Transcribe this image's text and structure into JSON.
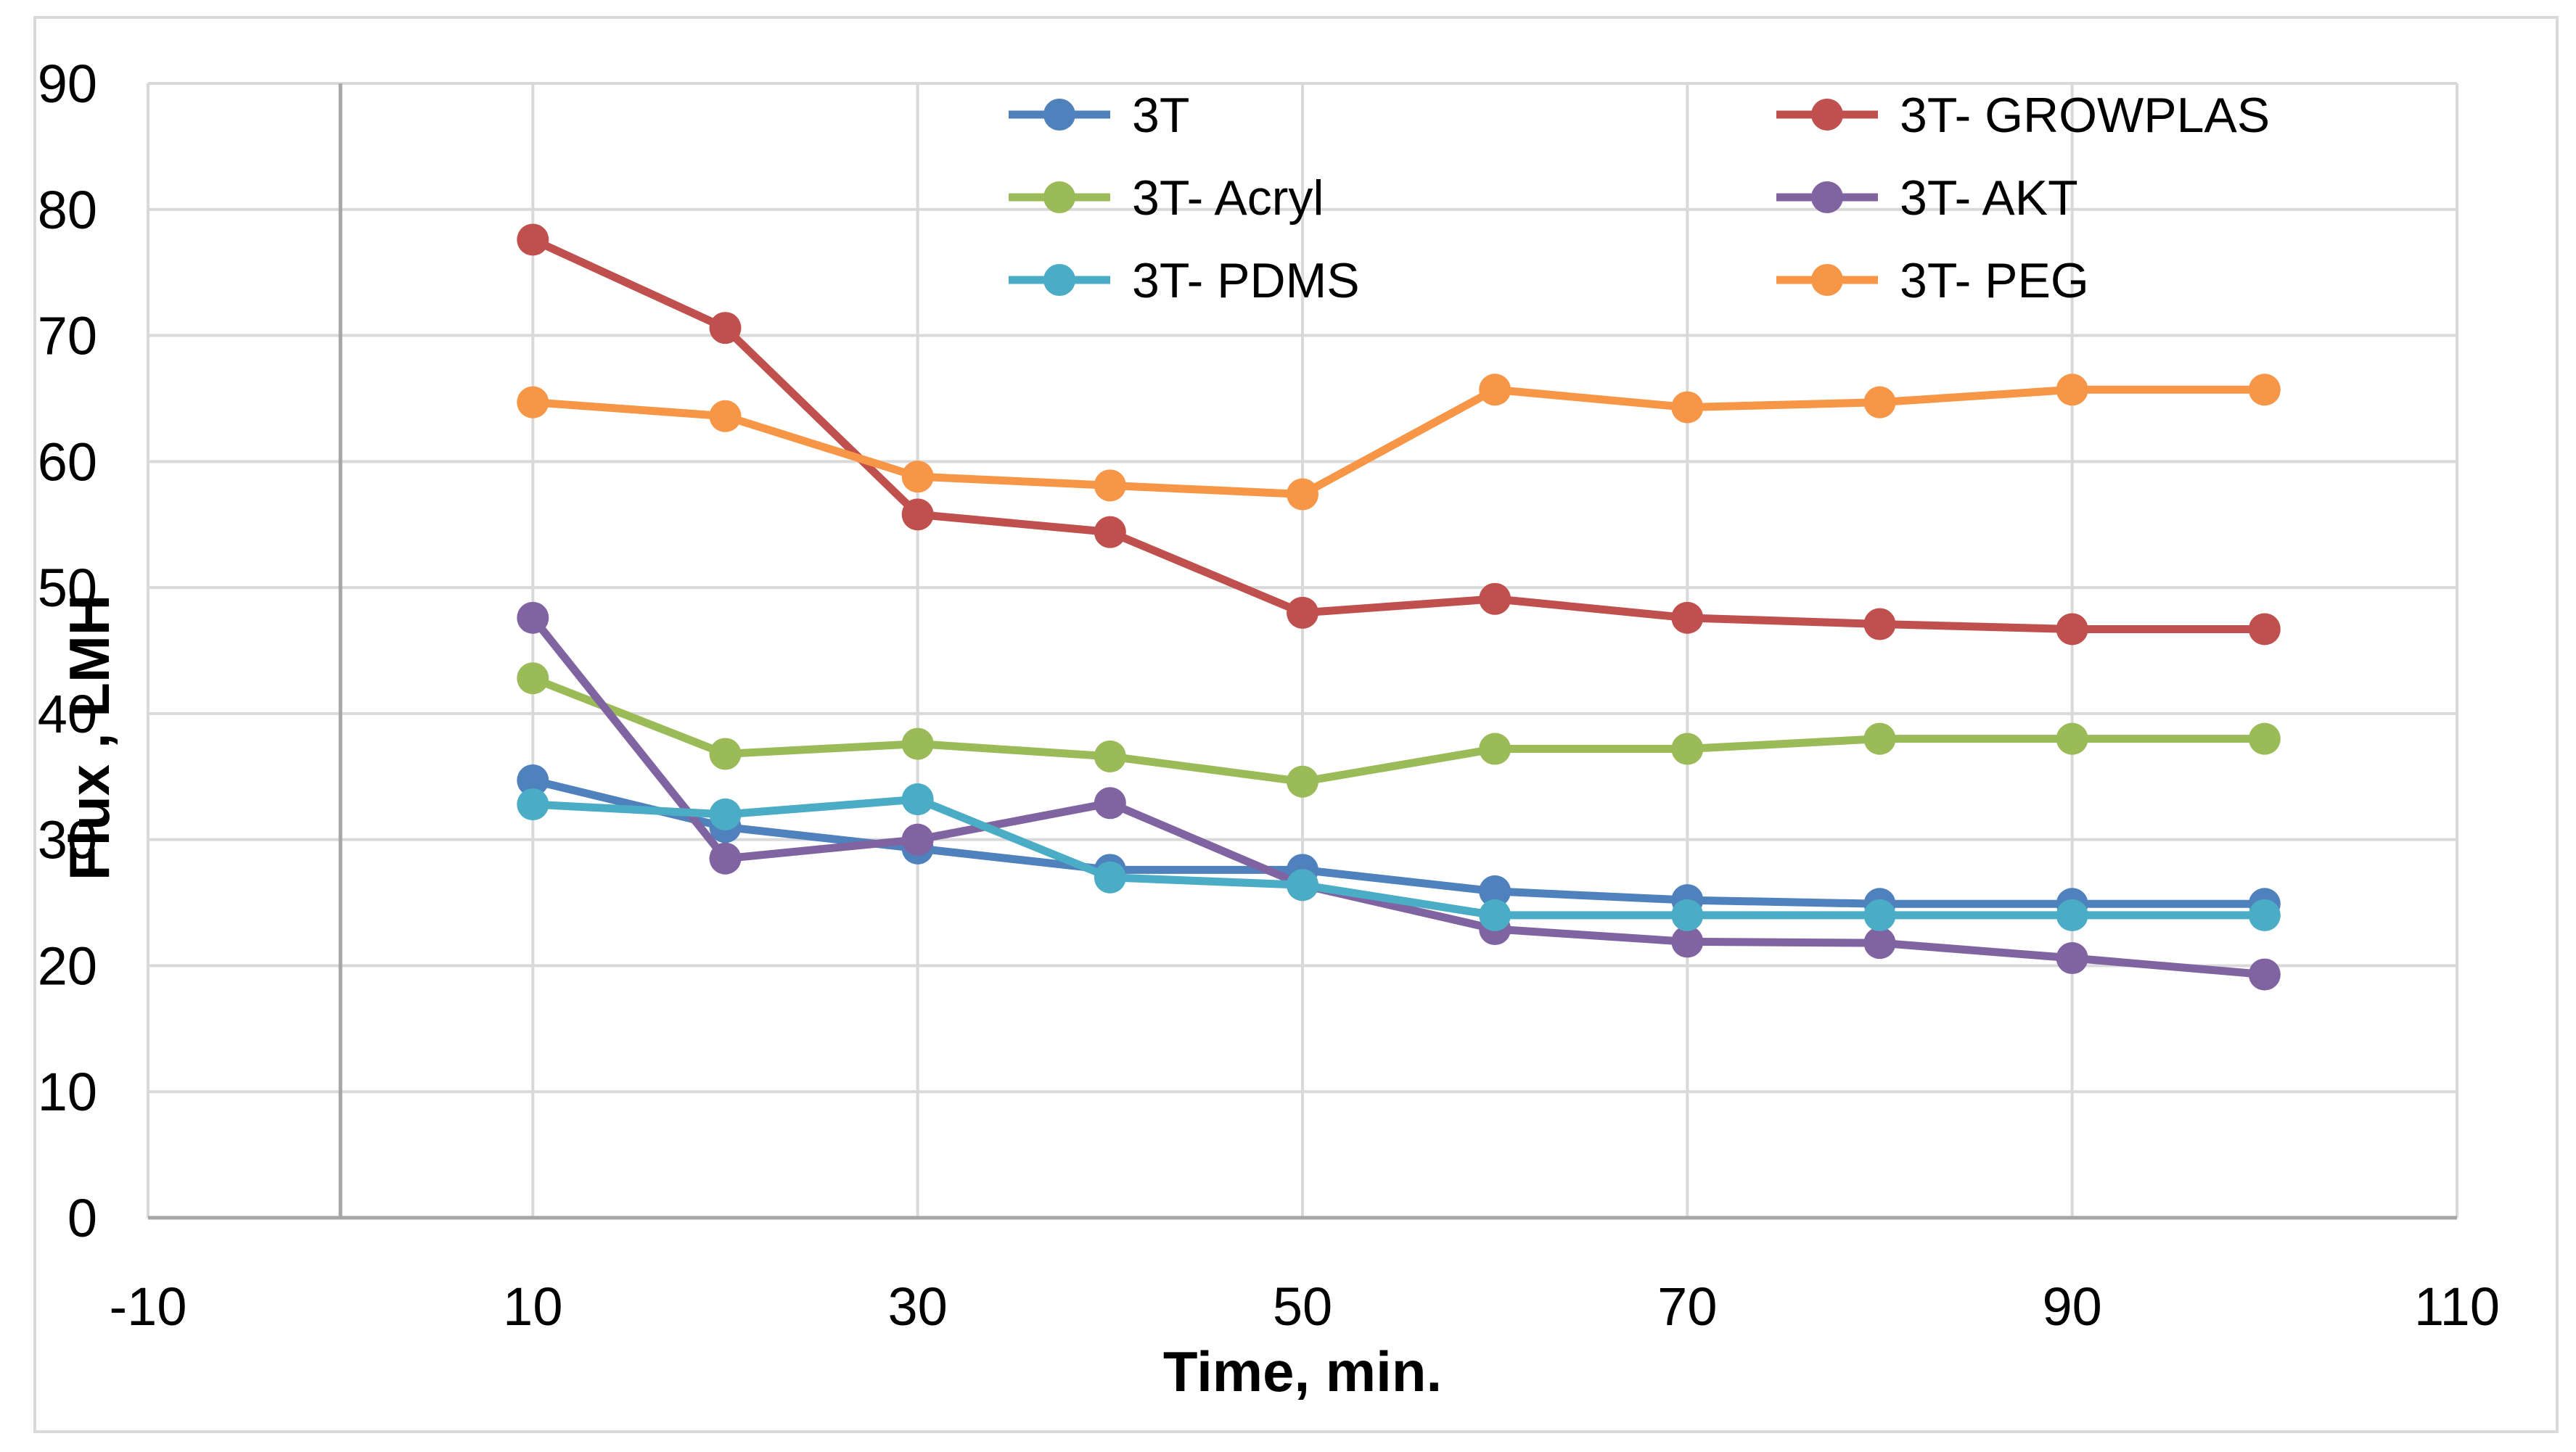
{
  "chart_data": {
    "type": "line",
    "title": "",
    "xlabel": "Time, min.",
    "ylabel": "Flux , LMH",
    "xlim": [
      -10,
      110
    ],
    "ylim": [
      0,
      90
    ],
    "x_ticks": [
      -10,
      10,
      30,
      50,
      70,
      90,
      110
    ],
    "y_ticks": [
      0,
      10,
      20,
      30,
      40,
      50,
      60,
      70,
      80,
      90
    ],
    "x_tick_labels": [
      "-10",
      "10",
      "30",
      "50",
      "70",
      "90",
      "110"
    ],
    "y_tick_labels": [
      "0",
      "10",
      "20",
      "30",
      "40",
      "50",
      "60",
      "70",
      "80",
      "90"
    ],
    "grid": true,
    "legend_position": "top",
    "x": [
      10,
      20,
      30,
      40,
      50,
      60,
      70,
      80,
      90,
      100
    ],
    "series": [
      {
        "name": "3T",
        "color": "#4F81BD",
        "values": [
          34.7,
          31.0,
          29.3,
          27.6,
          27.6,
          25.9,
          25.2,
          24.9,
          24.9,
          24.9
        ]
      },
      {
        "name": "3T- GROWPLAS",
        "color": "#C0504D",
        "values": [
          77.6,
          70.6,
          55.8,
          54.4,
          48.0,
          49.1,
          47.6,
          47.1,
          46.7,
          46.7
        ]
      },
      {
        "name": "3T- Acryl",
        "color": "#9BBB59",
        "values": [
          42.8,
          36.8,
          37.6,
          36.6,
          34.6,
          37.2,
          37.2,
          38.0,
          38.0,
          38.0
        ]
      },
      {
        "name": "3T- AKT",
        "color": "#8064A2",
        "values": [
          47.6,
          28.5,
          30.0,
          32.9,
          26.4,
          22.9,
          21.9,
          21.8,
          20.6,
          19.3
        ]
      },
      {
        "name": "3T- PDMS",
        "color": "#4BACC6",
        "values": [
          32.8,
          32.0,
          33.2,
          27.0,
          26.4,
          24.0,
          24.0,
          24.0,
          24.0,
          24.0
        ]
      },
      {
        "name": "3T- PEG",
        "color": "#F79646",
        "values": [
          64.7,
          63.6,
          58.8,
          58.1,
          57.4,
          65.7,
          64.3,
          64.7,
          65.7,
          65.7
        ]
      }
    ]
  }
}
